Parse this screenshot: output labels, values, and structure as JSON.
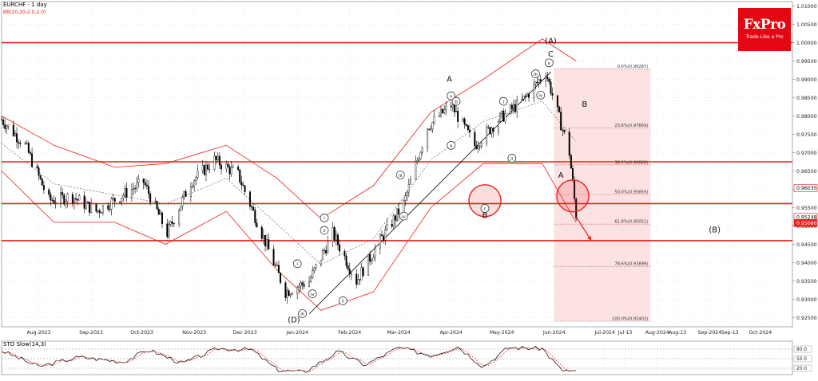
{
  "header": {
    "symbol_label": "EURCHF - 1 day",
    "indicator_label": "BB(20,20-2.0,2.0)",
    "osc_label": "STO Slow(14,3)"
  },
  "brand": {
    "name": "FxPro",
    "tagline": "Trade Like a Pro"
  },
  "colors": {
    "price": "#000000",
    "bands": "#e8201c",
    "mid_band": "#666666",
    "levels": "#e8201c",
    "fib_zone": "rgba(232,32,28,0.13)",
    "fib_line": "#d06565",
    "trendline": "#000000",
    "last_price_box": "#e8201c"
  },
  "chart_data": [
    {
      "type": "line",
      "title": "EURCHF - 1 day",
      "subtitle": "BB(20,20-2.0,2.0)",
      "xlabel": "",
      "ylabel": "",
      "xlim": [
        "2023-07-10",
        "2024-10-20"
      ],
      "ylim": [
        0.9225,
        1.0112
      ],
      "grid": true,
      "x_ticks": [
        "Aug-2023",
        "Sep-2023",
        "Oct-2023",
        "Nov-2023",
        "Dec-2023",
        "Jan-2024",
        "Feb-2024",
        "Mar-2024",
        "Apr-2024",
        "May-2024",
        "Jun-2024",
        "Jul-2024",
        "Jul-13",
        "Aug-2024",
        "Aug-13",
        "Sep-2024",
        "Sep-13",
        "Oct-2024"
      ],
      "x_tick_dates": [
        "2023-08-01",
        "2023-09-01",
        "2023-10-01",
        "2023-11-01",
        "2023-12-01",
        "2024-01-01",
        "2024-02-01",
        "2024-03-01",
        "2024-04-01",
        "2024-05-01",
        "2024-06-01",
        "2024-07-01",
        "2024-07-13",
        "2024-08-01",
        "2024-08-13",
        "2024-09-01",
        "2024-09-13",
        "2024-10-01"
      ],
      "y_ticks": [
        1.01,
        1.005,
        1.0,
        0.995,
        0.99,
        0.985,
        0.98,
        0.975,
        0.97,
        0.965,
        0.96,
        0.955,
        0.95,
        0.945,
        0.94,
        0.935,
        0.93,
        0.925
      ],
      "y_tick_labels": [
        "1.01000",
        "1.00500",
        "1.00000",
        "0.99500",
        "0.99000",
        "0.98500",
        "0.98000",
        "0.97500",
        "0.97000",
        "0.96500",
        "0.96000",
        "0.95500",
        "0.95000",
        "0.94500",
        "0.94000",
        "0.93500",
        "0.93000",
        "0.92500"
      ],
      "price_boxes": [
        {
          "value": 0.96035,
          "label": "0.96035",
          "fill": "#ffffff",
          "text": "#000000"
        },
        {
          "value": 0.95248,
          "label": "0.95248",
          "fill": "#ffffff",
          "text": "#000000"
        },
        {
          "value": 0.9508,
          "label": "0.95080",
          "fill": "#e8201c",
          "text": "#ffffff"
        }
      ],
      "series": [
        {
          "name": "EURCHF",
          "x": [
            "2023-07-10",
            "2023-07-24",
            "2023-08-07",
            "2023-08-21",
            "2023-09-04",
            "2023-09-18",
            "2023-10-02",
            "2023-10-16",
            "2023-10-30",
            "2023-11-13",
            "2023-11-27",
            "2023-12-11",
            "2023-12-25",
            "2024-01-08",
            "2024-01-22",
            "2024-02-05",
            "2024-02-19",
            "2024-03-04",
            "2024-03-18",
            "2024-04-01",
            "2024-04-15",
            "2024-04-29",
            "2024-05-13",
            "2024-05-27",
            "2024-06-10",
            "2024-06-14"
          ],
          "values": [
            0.979,
            0.972,
            0.957,
            0.958,
            0.954,
            0.958,
            0.962,
            0.948,
            0.962,
            0.968,
            0.964,
            0.948,
            0.932,
            0.935,
            0.948,
            0.935,
            0.946,
            0.956,
            0.977,
            0.983,
            0.972,
            0.979,
            0.984,
            0.992,
            0.97,
            0.953
          ]
        },
        {
          "name": "Upper Band",
          "x": [
            "2023-07-10",
            "2023-08-10",
            "2023-09-15",
            "2023-10-15",
            "2023-11-20",
            "2023-12-20",
            "2024-01-15",
            "2024-02-15",
            "2024-03-20",
            "2024-04-20",
            "2024-05-25",
            "2024-06-14"
          ],
          "values": [
            0.98,
            0.972,
            0.966,
            0.967,
            0.972,
            0.963,
            0.952,
            0.961,
            0.981,
            0.99,
            1.001,
            0.995
          ]
        },
        {
          "name": "Lower Band",
          "x": [
            "2023-07-10",
            "2023-08-10",
            "2023-09-15",
            "2023-10-15",
            "2023-11-20",
            "2023-12-20",
            "2024-01-15",
            "2024-02-15",
            "2024-03-20",
            "2024-04-20",
            "2024-05-25",
            "2024-06-14"
          ],
          "values": [
            0.965,
            0.951,
            0.951,
            0.945,
            0.954,
            0.938,
            0.927,
            0.932,
            0.955,
            0.967,
            0.967,
            0.951
          ]
        }
      ],
      "levels": [
        1.0,
        0.9675,
        0.9561,
        0.946
      ],
      "fib_zone": {
        "x_start": "2024-06-01",
        "x_end": "2024-07-28",
        "y_top": 0.99287,
        "y_bottom": 0.92402
      },
      "fib_levels": [
        {
          "label": "0.0%(0.99287)",
          "value": 0.99287
        },
        {
          "label": "23.6%(0.97669)",
          "value": 0.97669
        },
        {
          "label": "38.2%(0.96668)",
          "value": 0.96668
        },
        {
          "label": "50.0%(0.95859)",
          "value": 0.95859
        },
        {
          "label": "61.8%(0.95051)",
          "value": 0.95051
        },
        {
          "label": "78.6%(0.93899)",
          "value": 0.93899
        },
        {
          "label": "100.0%(0.92402)",
          "value": 0.92402
        }
      ],
      "trendline": {
        "x1": "2024-01-08",
        "y1": 0.926,
        "x2": "2024-05-30",
        "y2": 0.992
      },
      "target_arrow": {
        "x1": "2024-06-14",
        "y1": 0.9525,
        "x2": "2024-06-23",
        "y2": 0.946
      },
      "circles": [
        {
          "x": "2024-04-21",
          "y": 0.9569
        },
        {
          "x": "2024-06-12",
          "y": 0.9582
        }
      ],
      "wave_labels": [
        {
          "text": "(A)",
          "x": "2024-05-30",
          "y": 0.9998
        },
        {
          "text": "C",
          "x": "2024-05-30",
          "y": 0.9962
        },
        {
          "text": "A",
          "x": "2024-03-31",
          "y": 0.9893
        },
        {
          "text": "B",
          "x": "2024-06-19",
          "y": 0.9825
        },
        {
          "text": "A",
          "x": "2024-06-05",
          "y": 0.9632
        },
        {
          "text": "B",
          "x": "2024-04-21",
          "y": 0.9522
        },
        {
          "text": "(B)",
          "x": "2024-09-04",
          "y": 0.9483
        },
        {
          "text": "(D)",
          "x": "2023-12-30",
          "y": 0.9237
        }
      ],
      "wave_circles": [
        {
          "text": "v",
          "x": "2024-05-29",
          "y": 0.9945
        },
        {
          "text": "iii",
          "x": "2024-05-21",
          "y": 0.9915
        },
        {
          "text": "iv",
          "x": "2024-05-24",
          "y": 0.9857
        },
        {
          "text": "v",
          "x": "2024-04-01",
          "y": 0.9855
        },
        {
          "text": "b",
          "x": "2024-04-04",
          "y": 0.984
        },
        {
          "text": "i",
          "x": "2024-05-02",
          "y": 0.984
        },
        {
          "text": "a",
          "x": "2024-04-01",
          "y": 0.972
        },
        {
          "text": "ii",
          "x": "2024-05-07",
          "y": 0.9685
        },
        {
          "text": "iii",
          "x": "2024-03-02",
          "y": 0.9639
        },
        {
          "text": "iv",
          "x": "2024-03-04",
          "y": 0.9527
        },
        {
          "text": "c",
          "x": "2024-04-21",
          "y": 0.9548
        },
        {
          "text": "i",
          "x": "2024-01-17",
          "y": 0.9522
        },
        {
          "text": "v",
          "x": "2024-01-17",
          "y": 0.9488
        },
        {
          "text": "i",
          "x": "2024-01-01",
          "y": 0.9397
        },
        {
          "text": "iv",
          "x": "2024-01-10",
          "y": 0.9315
        },
        {
          "text": "ii",
          "x": "2024-01-28",
          "y": 0.9296
        },
        {
          "text": "iii",
          "x": "2024-01-04",
          "y": 0.9261
        }
      ]
    },
    {
      "type": "line",
      "title": "STO Slow(14,3)",
      "ylim": [
        0,
        100
      ],
      "y_ticks": [
        80,
        50,
        20
      ],
      "y_tick_labels": [
        "80.0",
        "50.0",
        "20.0"
      ],
      "series": [
        {
          "name": "%K",
          "x": [
            "2023-07-10",
            "2023-08-01",
            "2023-08-25",
            "2023-09-20",
            "2023-10-05",
            "2023-10-25",
            "2023-11-15",
            "2023-12-05",
            "2023-12-20",
            "2024-01-05",
            "2024-01-25",
            "2024-02-10",
            "2024-03-01",
            "2024-03-20",
            "2024-04-05",
            "2024-04-20",
            "2024-05-05",
            "2024-05-25",
            "2024-06-05",
            "2024-06-14"
          ],
          "values": [
            75,
            25,
            55,
            40,
            78,
            35,
            82,
            78,
            15,
            8,
            72,
            30,
            85,
            60,
            88,
            25,
            85,
            82,
            15,
            8
          ]
        }
      ]
    }
  ]
}
